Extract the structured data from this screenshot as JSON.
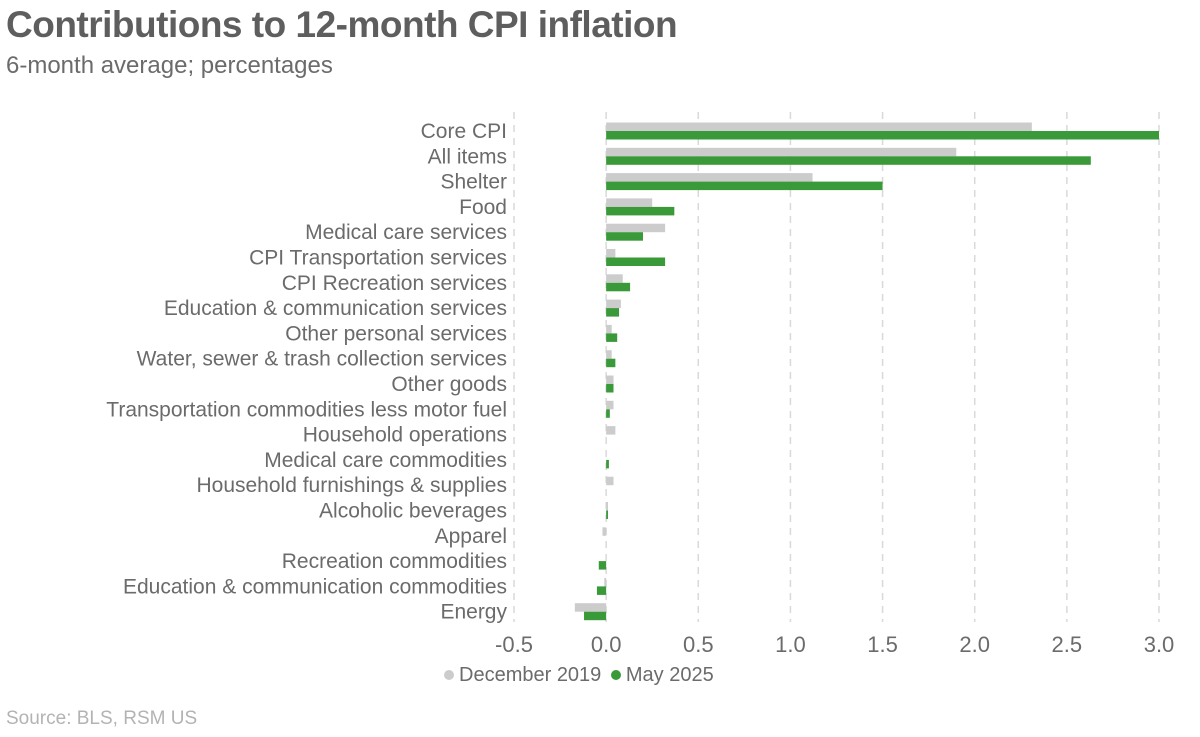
{
  "title": "Contributions to 12-month CPI inflation",
  "subtitle": "6-month average; percentages",
  "source": "Source: BLS, RSM US",
  "colors": {
    "series1": "#cccccc",
    "series2": "#3a9a3a",
    "grid": "#d9d9d9"
  },
  "chart_data": {
    "type": "bar",
    "orientation": "horizontal",
    "title": "Contributions to 12-month CPI inflation",
    "subtitle": "6-month average; percentages",
    "xlabel": "",
    "ylabel": "",
    "xlim": [
      -0.5,
      3.0
    ],
    "xticks": [
      -0.5,
      0.0,
      0.5,
      1.0,
      1.5,
      2.0,
      2.5,
      3.0
    ],
    "xtick_labels": [
      "-0.5",
      "0.0",
      "0.5",
      "1.0",
      "1.5",
      "2.0",
      "2.5",
      "3.0"
    ],
    "grid": "vertical dashed",
    "legend_position": "bottom",
    "categories": [
      "Core CPI",
      "All items",
      "Shelter",
      "Food",
      "Medical care services",
      "CPI Transportation services",
      "CPI Recreation services",
      "Education & communication services",
      "Other personal services",
      "Water, sewer & trash collection services",
      "Other goods",
      "Transportation commodities less motor fuel",
      "Household operations",
      "Medical care commodities",
      "Household furnishings & supplies",
      "Alcoholic beverages",
      "Apparel",
      "Recreation commodities",
      "Education & communication commodities",
      "Energy"
    ],
    "series": [
      {
        "name": "December 2019",
        "color": "#cccccc",
        "values": [
          2.31,
          1.9,
          1.12,
          0.25,
          0.32,
          0.05,
          0.09,
          0.08,
          0.03,
          0.03,
          0.04,
          0.04,
          0.05,
          0.0,
          0.04,
          0.01,
          -0.02,
          0.0,
          -0.01,
          -0.17
        ]
      },
      {
        "name": "May 2025",
        "color": "#3a9a3a",
        "values": [
          3.0,
          2.63,
          1.5,
          0.37,
          0.2,
          0.32,
          0.13,
          0.07,
          0.06,
          0.05,
          0.04,
          0.02,
          0.0,
          0.015,
          0.0,
          0.01,
          0.0,
          -0.04,
          -0.05,
          -0.12
        ]
      }
    ]
  }
}
